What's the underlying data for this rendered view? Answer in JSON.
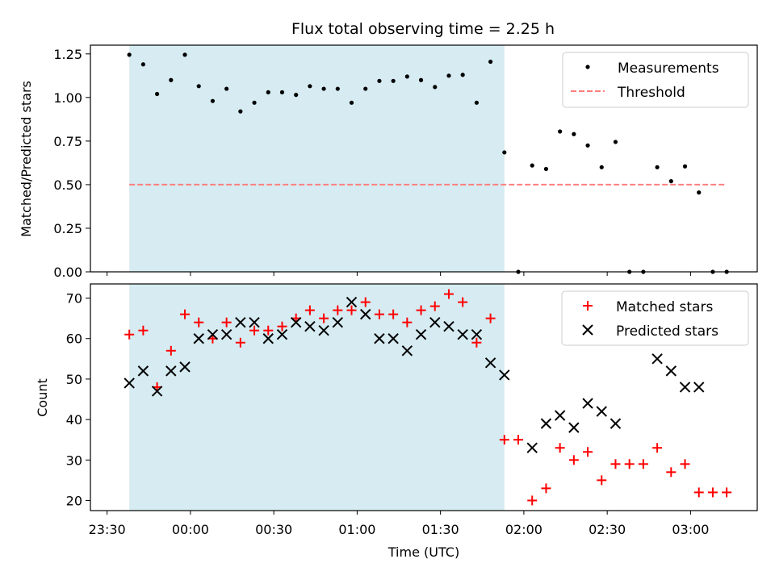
{
  "title": "Flux total observing time = 2.25 h",
  "colors": {
    "shade": "#add8e6",
    "measurement": "#000000",
    "threshold": "#ff7f7f",
    "matched": "#ff0000",
    "predicted": "#000000"
  },
  "chart_data": [
    {
      "type": "scatter",
      "ylabel": "Matched/Predicted stars",
      "ylim": [
        0.0,
        1.3
      ],
      "yticks": [
        0.0,
        0.25,
        0.5,
        0.75,
        1.0,
        1.25
      ],
      "ytick_labels": [
        "0.00",
        "0.25",
        "0.50",
        "0.75",
        "1.00",
        "1.25"
      ],
      "legend": "top-right",
      "shaded_region": {
        "from": "23:38",
        "to": "01:53"
      },
      "threshold": {
        "name": "Threshold",
        "value": 0.5,
        "from": "23:38",
        "to": "03:13"
      },
      "series": [
        {
          "name": "Measurements",
          "marker": "dot",
          "x": [
            "23:38",
            "23:43",
            "23:48",
            "23:53",
            "23:58",
            "00:03",
            "00:08",
            "00:13",
            "00:18",
            "00:23",
            "00:28",
            "00:33",
            "00:38",
            "00:43",
            "00:48",
            "00:53",
            "00:58",
            "01:03",
            "01:08",
            "01:13",
            "01:18",
            "01:23",
            "01:28",
            "01:33",
            "01:38",
            "01:43",
            "01:48",
            "01:53",
            "01:58",
            "02:03",
            "02:08",
            "02:13",
            "02:18",
            "02:23",
            "02:28",
            "02:33",
            "02:38",
            "02:43",
            "02:48",
            "02:53",
            "02:58",
            "03:03",
            "03:08",
            "03:13"
          ],
          "y": [
            1.245,
            1.19,
            1.02,
            1.1,
            1.245,
            1.065,
            0.98,
            1.05,
            0.92,
            0.97,
            1.03,
            1.03,
            1.015,
            1.065,
            1.05,
            1.05,
            0.97,
            1.05,
            1.095,
            1.095,
            1.12,
            1.1,
            1.06,
            1.125,
            1.13,
            0.97,
            1.205,
            0.685,
            0.0,
            0.61,
            0.59,
            0.805,
            0.79,
            0.725,
            0.6,
            0.745,
            0.0,
            0.0,
            0.6,
            0.52,
            0.605,
            0.455,
            0.0,
            0.0
          ]
        }
      ]
    },
    {
      "type": "scatter",
      "xlabel": "Time (UTC)",
      "ylabel": "Count",
      "ylim": [
        17.5,
        73.5
      ],
      "yticks": [
        20,
        30,
        40,
        50,
        60,
        70
      ],
      "ytick_labels": [
        "20",
        "30",
        "40",
        "50",
        "60",
        "70"
      ],
      "xlim": [
        "23:24",
        "03:24"
      ],
      "xticks": [
        "23:30",
        "00:00",
        "00:30",
        "01:00",
        "01:30",
        "02:00",
        "02:30",
        "03:00"
      ],
      "xtick_labels": [
        "23:30",
        "00:00",
        "00:30",
        "01:00",
        "01:30",
        "02:00",
        "02:30",
        "03:00"
      ],
      "legend": "top-right",
      "shaded_region": {
        "from": "23:38",
        "to": "01:53"
      },
      "series": [
        {
          "name": "Matched stars",
          "marker": "plus",
          "x": [
            "23:38",
            "23:43",
            "23:48",
            "23:53",
            "23:58",
            "00:03",
            "00:08",
            "00:13",
            "00:18",
            "00:23",
            "00:28",
            "00:33",
            "00:38",
            "00:43",
            "00:48",
            "00:53",
            "00:58",
            "01:03",
            "01:08",
            "01:13",
            "01:18",
            "01:23",
            "01:28",
            "01:33",
            "01:38",
            "01:43",
            "01:48",
            "01:53",
            "01:58",
            "02:03",
            "02:08",
            "02:13",
            "02:18",
            "02:23",
            "02:28",
            "02:33",
            "02:38",
            "02:43",
            "02:48",
            "02:53",
            "02:58",
            "03:03",
            "03:08",
            "03:13"
          ],
          "y": [
            61,
            62,
            48,
            57,
            66,
            64,
            60,
            64,
            59,
            62,
            62,
            63,
            65,
            67,
            65,
            67,
            67,
            69,
            66,
            66,
            64,
            67,
            68,
            71,
            69,
            59,
            65,
            35,
            35,
            20,
            23,
            33,
            30,
            32,
            25,
            29,
            29,
            29,
            33,
            27,
            29,
            22,
            22,
            22
          ]
        },
        {
          "name": "Predicted stars",
          "marker": "x",
          "x": [
            "23:38",
            "23:43",
            "23:48",
            "23:53",
            "23:58",
            "00:03",
            "00:08",
            "00:13",
            "00:18",
            "00:23",
            "00:28",
            "00:33",
            "00:38",
            "00:43",
            "00:48",
            "00:53",
            "00:58",
            "01:03",
            "01:08",
            "01:13",
            "01:18",
            "01:23",
            "01:28",
            "01:33",
            "01:38",
            "01:43",
            "01:48",
            "01:53",
            "02:03",
            "02:08",
            "02:13",
            "02:18",
            "02:23",
            "02:28",
            "02:33",
            "02:48",
            "02:53",
            "02:58",
            "03:03"
          ],
          "y": [
            49,
            52,
            47,
            52,
            53,
            60,
            61,
            61,
            64,
            64,
            60,
            61,
            64,
            63,
            62,
            64,
            69,
            66,
            60,
            60,
            57,
            61,
            64,
            63,
            61,
            61,
            54,
            51,
            33,
            39,
            41,
            38,
            44,
            42,
            39,
            55,
            52,
            48,
            48
          ]
        }
      ]
    }
  ]
}
